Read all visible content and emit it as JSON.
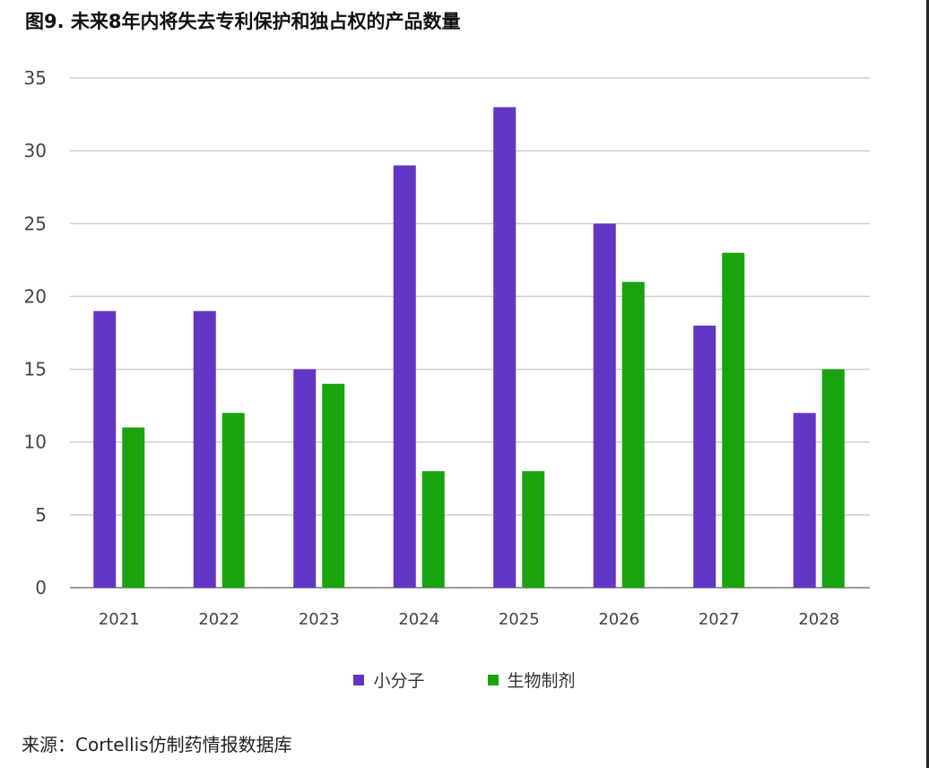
{
  "title": "图9. 未来8年内将失去专利保护和独占权的产品数量",
  "source": "来源：Cortellis仿制药情报数据库",
  "colors": {
    "small_molecule": "#6236c4",
    "biologics": "#19a30f",
    "grid": "#cfcfcf",
    "axis": "#9a9a9a"
  },
  "chart_data": {
    "type": "bar",
    "title": "图9. 未来8年内将失去专利保护和独占权的产品数量",
    "categories": [
      "2021",
      "2022",
      "2023",
      "2024",
      "2025",
      "2026",
      "2027",
      "2028"
    ],
    "series": [
      {
        "name": "小分子",
        "values": [
          19,
          19,
          15,
          29,
          33,
          25,
          18,
          12
        ]
      },
      {
        "name": "生物制剂",
        "values": [
          11,
          12,
          14,
          8,
          8,
          21,
          23,
          15
        ]
      }
    ],
    "ylim": [
      0,
      35
    ],
    "yticks": [
      "0",
      "5",
      "10",
      "15",
      "20",
      "25",
      "30",
      "35"
    ],
    "xlabel": "",
    "ylabel": "",
    "grid": true,
    "legend_position": "bottom-center"
  }
}
